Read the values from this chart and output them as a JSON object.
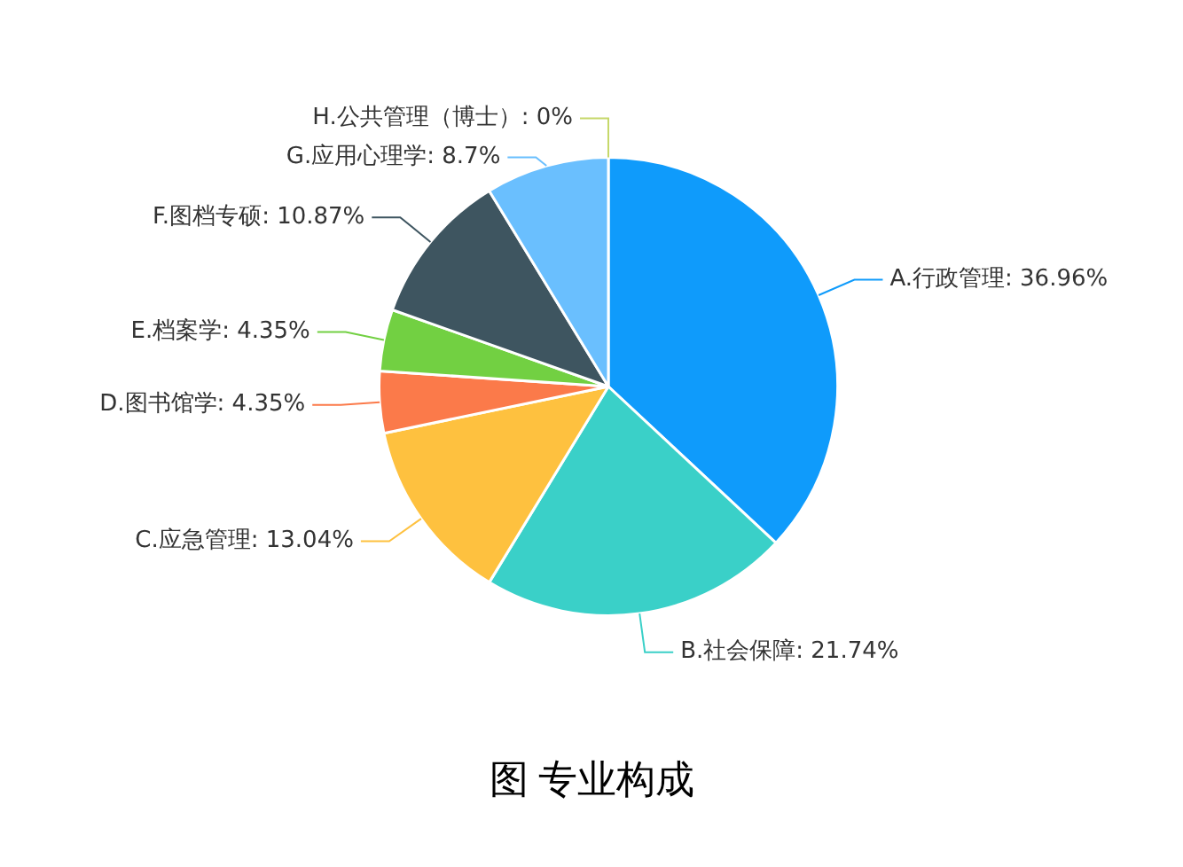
{
  "chart_data": {
    "type": "pie",
    "title": "图  专业构成",
    "categories": [
      "A.行政管理",
      "B.社会保障",
      "C.应急管理",
      "D.图书馆学",
      "E.档案学",
      "F.图档专硕",
      "G.应用心理学",
      "H.公共管理（博士）"
    ],
    "values": [
      36.96,
      21.74,
      13.04,
      4.35,
      4.35,
      10.87,
      8.7,
      0
    ],
    "value_labels": [
      ": 36.96%",
      ": 21.74%",
      ": 13.04%",
      ": 4.35%",
      ": 4.35%",
      ": 10.87%",
      ": 8.7%",
      ": 0%"
    ],
    "colors": [
      "#0f9bfb",
      "#3ad0c8",
      "#fec13f",
      "#fb7a4a",
      "#72d042",
      "#3e5560",
      "#6abffe",
      "#c6d86a"
    ],
    "legend": false
  }
}
